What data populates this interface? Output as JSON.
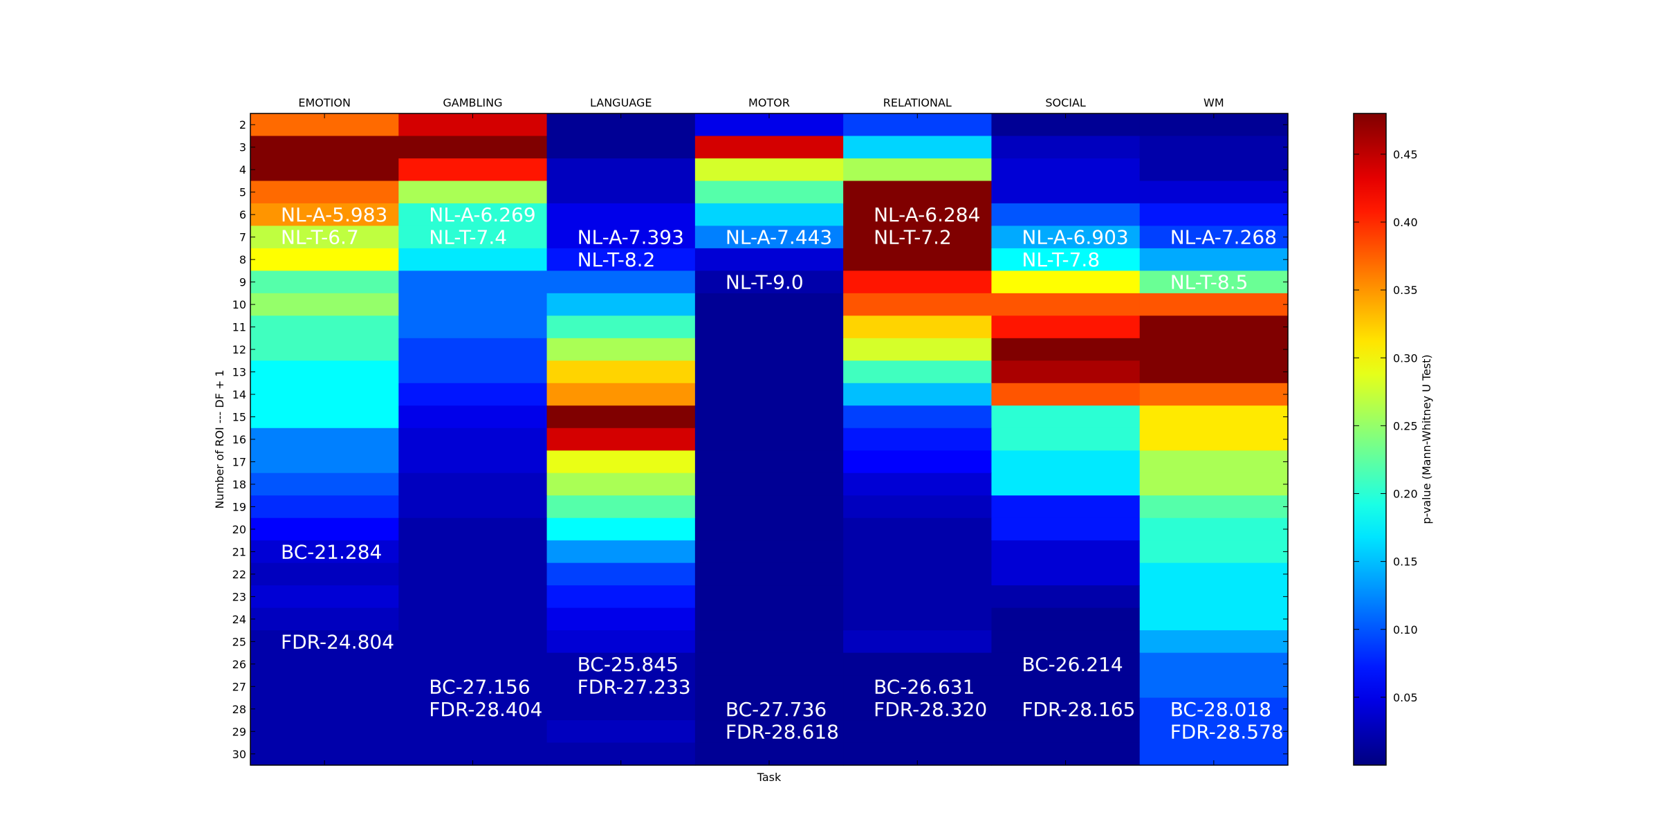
{
  "chart_data": {
    "type": "heatmap",
    "xlabel": "Task",
    "ylabel": "Number of ROI --- DF + 1",
    "columns": [
      "EMOTION",
      "GAMBLING",
      "LANGUAGE",
      "MOTOR",
      "RELATIONAL",
      "SOCIAL",
      "WM"
    ],
    "rows": [
      2,
      3,
      4,
      5,
      6,
      7,
      8,
      9,
      10,
      11,
      12,
      13,
      14,
      15,
      16,
      17,
      18,
      19,
      20,
      21,
      22,
      23,
      24,
      25,
      26,
      27,
      28,
      29,
      30
    ],
    "values": [
      [
        0.37,
        0.44,
        0.01,
        0.05,
        0.09,
        0.01,
        0.01
      ],
      [
        0.48,
        0.48,
        0.01,
        0.44,
        0.16,
        0.03,
        0.02
      ],
      [
        0.48,
        0.41,
        0.03,
        0.28,
        0.26,
        0.04,
        0.02
      ],
      [
        0.37,
        0.26,
        0.03,
        0.22,
        0.48,
        0.04,
        0.04
      ],
      [
        0.35,
        0.2,
        0.05,
        0.16,
        0.48,
        0.1,
        0.07
      ],
      [
        0.27,
        0.2,
        0.05,
        0.12,
        0.48,
        0.14,
        0.09
      ],
      [
        0.3,
        0.17,
        0.07,
        0.04,
        0.48,
        0.18,
        0.14
      ],
      [
        0.22,
        0.11,
        0.11,
        0.02,
        0.41,
        0.3,
        0.23
      ],
      [
        0.25,
        0.11,
        0.15,
        0.01,
        0.38,
        0.38,
        0.38
      ],
      [
        0.21,
        0.11,
        0.21,
        0.01,
        0.32,
        0.41,
        0.48
      ],
      [
        0.21,
        0.09,
        0.26,
        0.01,
        0.28,
        0.48,
        0.48
      ],
      [
        0.18,
        0.09,
        0.32,
        0.01,
        0.21,
        0.46,
        0.48
      ],
      [
        0.18,
        0.07,
        0.35,
        0.01,
        0.15,
        0.38,
        0.37
      ],
      [
        0.18,
        0.05,
        0.48,
        0.01,
        0.09,
        0.2,
        0.31
      ],
      [
        0.12,
        0.04,
        0.44,
        0.01,
        0.07,
        0.2,
        0.31
      ],
      [
        0.12,
        0.04,
        0.29,
        0.01,
        0.06,
        0.17,
        0.26
      ],
      [
        0.1,
        0.03,
        0.26,
        0.01,
        0.04,
        0.17,
        0.26
      ],
      [
        0.08,
        0.03,
        0.22,
        0.01,
        0.03,
        0.07,
        0.22
      ],
      [
        0.06,
        0.02,
        0.18,
        0.01,
        0.02,
        0.07,
        0.2
      ],
      [
        0.04,
        0.02,
        0.13,
        0.01,
        0.02,
        0.04,
        0.2
      ],
      [
        0.03,
        0.02,
        0.09,
        0.01,
        0.02,
        0.04,
        0.17
      ],
      [
        0.04,
        0.02,
        0.07,
        0.01,
        0.02,
        0.02,
        0.17
      ],
      [
        0.03,
        0.02,
        0.05,
        0.01,
        0.02,
        0.01,
        0.17
      ],
      [
        0.02,
        0.02,
        0.04,
        0.01,
        0.03,
        0.01,
        0.14
      ],
      [
        0.02,
        0.02,
        0.02,
        0.01,
        0.01,
        0.01,
        0.11
      ],
      [
        0.02,
        0.02,
        0.02,
        0.01,
        0.01,
        0.01,
        0.11
      ],
      [
        0.02,
        0.02,
        0.02,
        0.01,
        0.01,
        0.01,
        0.09
      ],
      [
        0.02,
        0.02,
        0.03,
        0.01,
        0.01,
        0.01,
        0.09
      ],
      [
        0.02,
        0.02,
        0.02,
        0.01,
        0.01,
        0.01,
        0.09
      ]
    ],
    "color_range": [
      0.0,
      0.48
    ],
    "colormap": "jet",
    "colorbar": {
      "label": "p-value (Mann-Whitney U Test)",
      "ticks": [
        0.05,
        0.1,
        0.15,
        0.2,
        0.25,
        0.3,
        0.35,
        0.4,
        0.45
      ],
      "tick_labels": [
        "0.05",
        "0.10",
        "0.15",
        "0.20",
        "0.25",
        "0.30",
        "0.35",
        "0.40",
        "0.45"
      ]
    },
    "annotations": [
      {
        "column": "EMOTION",
        "row": 6,
        "text": "NL-A-5.983"
      },
      {
        "column": "EMOTION",
        "row": 7,
        "text": "NL-T-6.7"
      },
      {
        "column": "EMOTION",
        "row": 21,
        "text": "BC-21.284"
      },
      {
        "column": "EMOTION",
        "row": 25,
        "text": "FDR-24.804"
      },
      {
        "column": "GAMBLING",
        "row": 6,
        "text": "NL-A-6.269"
      },
      {
        "column": "GAMBLING",
        "row": 7,
        "text": "NL-T-7.4"
      },
      {
        "column": "GAMBLING",
        "row": 27,
        "text": "BC-27.156"
      },
      {
        "column": "GAMBLING",
        "row": 28,
        "text": "FDR-28.404"
      },
      {
        "column": "LANGUAGE",
        "row": 7,
        "text": "NL-A-7.393"
      },
      {
        "column": "LANGUAGE",
        "row": 8,
        "text": "NL-T-8.2"
      },
      {
        "column": "LANGUAGE",
        "row": 26,
        "text": "BC-25.845"
      },
      {
        "column": "LANGUAGE",
        "row": 27,
        "text": "FDR-27.233"
      },
      {
        "column": "MOTOR",
        "row": 7,
        "text": "NL-A-7.443"
      },
      {
        "column": "MOTOR",
        "row": 9,
        "text": "NL-T-9.0"
      },
      {
        "column": "MOTOR",
        "row": 28,
        "text": "BC-27.736"
      },
      {
        "column": "MOTOR",
        "row": 29,
        "text": "FDR-28.618"
      },
      {
        "column": "RELATIONAL",
        "row": 6,
        "text": "NL-A-6.284"
      },
      {
        "column": "RELATIONAL",
        "row": 7,
        "text": "NL-T-7.2"
      },
      {
        "column": "RELATIONAL",
        "row": 27,
        "text": "BC-26.631"
      },
      {
        "column": "RELATIONAL",
        "row": 28,
        "text": "FDR-28.320"
      },
      {
        "column": "SOCIAL",
        "row": 7,
        "text": "NL-A-6.903"
      },
      {
        "column": "SOCIAL",
        "row": 8,
        "text": "NL-T-7.8"
      },
      {
        "column": "SOCIAL",
        "row": 26,
        "text": "BC-26.214"
      },
      {
        "column": "SOCIAL",
        "row": 28,
        "text": "FDR-28.165"
      },
      {
        "column": "WM",
        "row": 7,
        "text": "NL-A-7.268"
      },
      {
        "column": "WM",
        "row": 9,
        "text": "NL-T-8.5"
      },
      {
        "column": "WM",
        "row": 28,
        "text": "BC-28.018"
      },
      {
        "column": "WM",
        "row": 29,
        "text": "FDR-28.578"
      }
    ],
    "x_ticks_position": "top",
    "colorbar_position": "right"
  }
}
